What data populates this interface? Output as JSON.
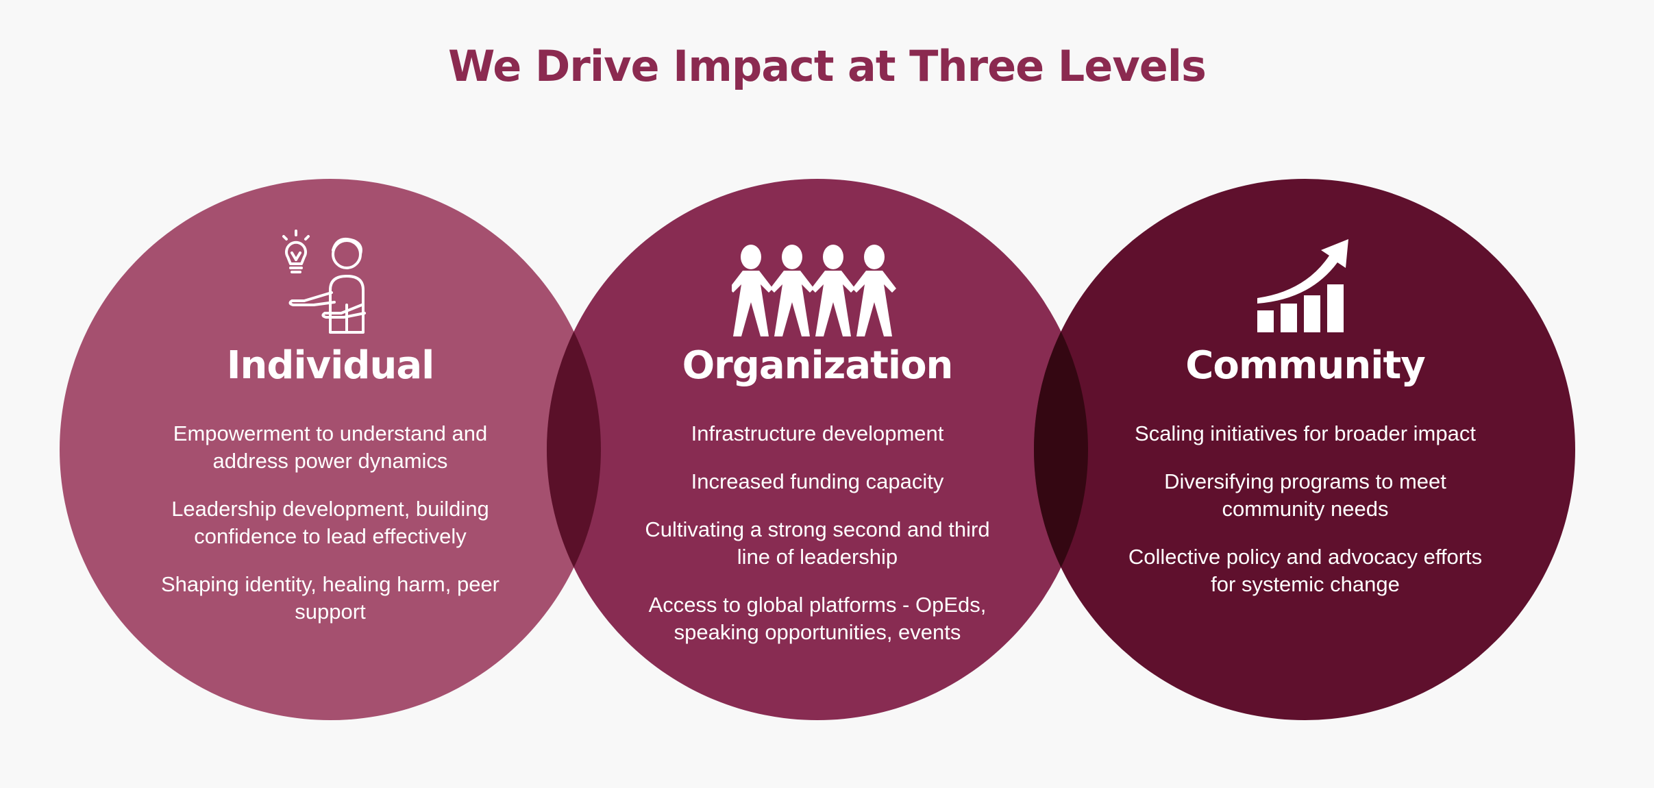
{
  "title": "We Drive Impact at Three Levels",
  "colors": {
    "title": "#8b2a50",
    "individual": "#a5506f",
    "organization": "#882c52",
    "community": "#5f102d",
    "overlap_left": "#5a1029",
    "overlap_right": "#340712",
    "background": "#f8f8f8"
  },
  "levels": [
    {
      "name": "Individual",
      "icon": "person-with-lightbulb-icon",
      "items": [
        "Empowerment to understand and address power dynamics",
        "Leadership development, building confidence to lead effectively",
        "Shaping identity, healing harm, peer support"
      ]
    },
    {
      "name": "Organization",
      "icon": "people-holding-hands-icon",
      "items": [
        "Infrastructure development",
        "Increased funding capacity",
        "Cultivating a strong second and third line of leadership",
        "Access to global platforms  - OpEds, speaking opportunities, events"
      ]
    },
    {
      "name": "Community",
      "icon": "growth-chart-icon",
      "items": [
        "Scaling initiatives for broader impact",
        "Diversifying programs to meet community needs",
        "Collective policy and advocacy efforts for systemic change"
      ]
    }
  ]
}
